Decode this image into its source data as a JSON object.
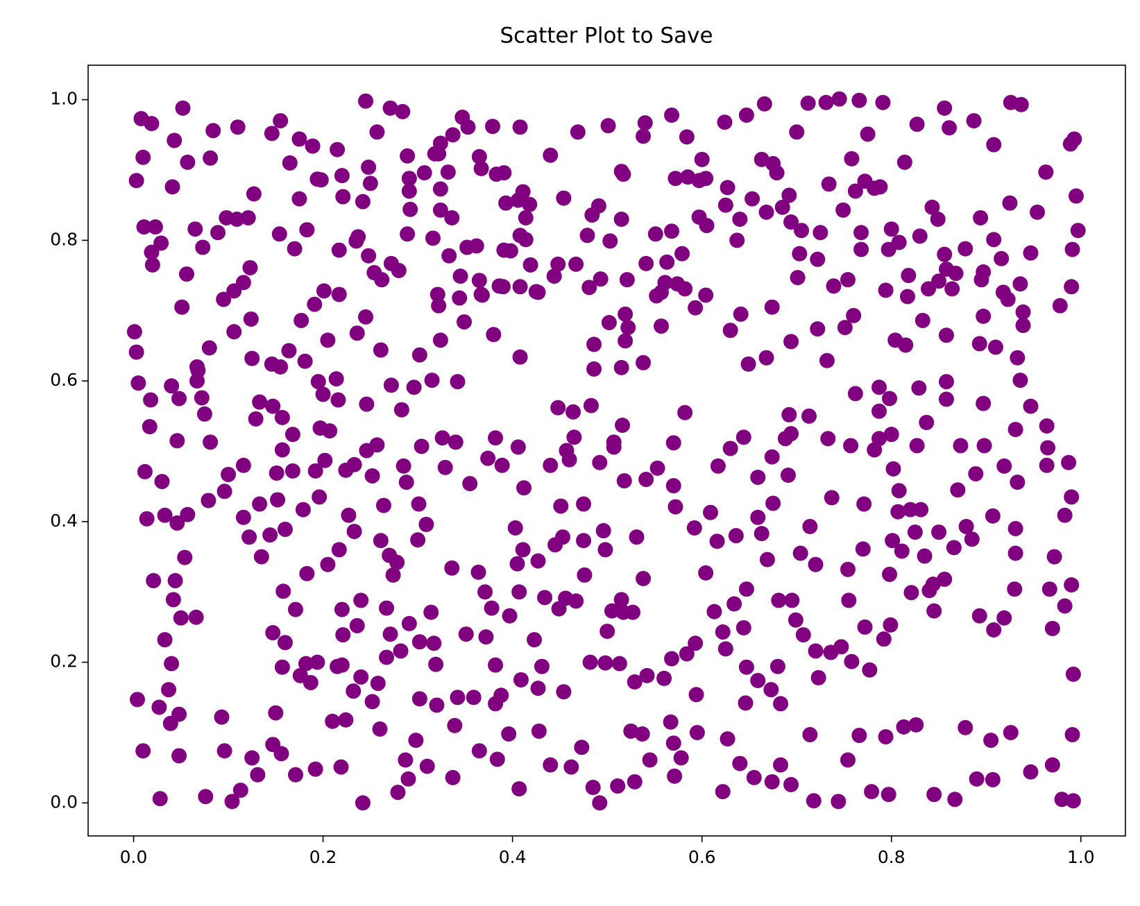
{
  "chart_data": {
    "type": "scatter",
    "title": "Scatter Plot to Save",
    "color": "#800080",
    "xlim": [
      -0.048,
      1.047
    ],
    "ylim": [
      -0.047,
      1.049
    ],
    "xticks": [
      {
        "value": 0,
        "label": "0.0"
      },
      0.2,
      0.4,
      0.6,
      0.8,
      {
        "value": 1,
        "label": "1.0"
      }
    ],
    "yticks": [
      {
        "value": 0,
        "label": "0.0"
      },
      0.2,
      0.4,
      0.6,
      0.8,
      {
        "value": 1,
        "label": "1.0"
      }
    ],
    "x": [
      0.003,
      0.008,
      0.019,
      0.01,
      0.011,
      0.023,
      0.019,
      0.02,
      0.029,
      0.041,
      0.043,
      0.052,
      0.057,
      0.065,
      0.073,
      0.084,
      0.081,
      0.11,
      0.127,
      0.146,
      0.155,
      0.165,
      0.175,
      0.189,
      0.198,
      0.215,
      0.22,
      0.245,
      0.257,
      0.271,
      0.284,
      0.289,
      0.322,
      0.347,
      0.365,
      0.379,
      0.391,
      0.408,
      0.411,
      0.44,
      0.454,
      0.469,
      0.501,
      0.515,
      0.538,
      0.54,
      0.568,
      0.584,
      0.6,
      0.624,
      0.647,
      0.666,
      0.7,
      0.712,
      0.731,
      0.745,
      0.766,
      0.791,
      0.775,
      0.758,
      0.782,
      0.814,
      0.827,
      0.856,
      0.861,
      0.887,
      0.908,
      0.926,
      0.937,
      0.963,
      0.989,
      0.993,
      0.995,
      0.997,
      0.991,
      0.99,
      0.978,
      0.954,
      0.947,
      0.936,
      0.939,
      0.918,
      0.916,
      0.925,
      0.894,
      0.897,
      0.91,
      0.893,
      0.878,
      0.858,
      0.858,
      0.817,
      0.804,
      0.794,
      0.797,
      0.808,
      0.83,
      0.849,
      0.843,
      0.754,
      0.751,
      0.76,
      0.739,
      0.722,
      0.703,
      0.701,
      0.732,
      0.722,
      0.694,
      0.674,
      0.668,
      0.649,
      0.641,
      0.63,
      0.637,
      0.625,
      0.605,
      0.579,
      0.563,
      0.551,
      0.568,
      0.574,
      0.582,
      0.593,
      0.604,
      0.557,
      0.538,
      0.522,
      0.515,
      0.502,
      0.486,
      0.486,
      0.483,
      0.464,
      0.448,
      0.444,
      0.427,
      0.408,
      0.408,
      0.39,
      0.368,
      0.38,
      0.349,
      0.342,
      0.324,
      0.315,
      0.302,
      0.296,
      0.283,
      0.272,
      0.261,
      0.245,
      0.236,
      0.262,
      0.235,
      0.217,
      0.201,
      0.217,
      0.191,
      0.177,
      0.164,
      0.146,
      0.125,
      0.124,
      0.106,
      0.08,
      0.068,
      0.051,
      0.056,
      0.04,
      0.005,
      0.003,
      0.001,
      0.018,
      0.048,
      0.046,
      0.012,
      0.017,
      0.03,
      0.014,
      0.033,
      0.057,
      0.046,
      0.054,
      0.044,
      0.021,
      0.042,
      0.05,
      0.066,
      0.033,
      0.04,
      0.037,
      0.004,
      0.027,
      0.039,
      0.048,
      0.01,
      0.028,
      0.048,
      0.076,
      0.093,
      0.096,
      0.104,
      0.113,
      0.125,
      0.131,
      0.15,
      0.147,
      0.156,
      0.171,
      0.192,
      0.219,
      0.21,
      0.224,
      0.22,
      0.221,
      0.236,
      0.24,
      0.242,
      0.252,
      0.26,
      0.279,
      0.287,
      0.298,
      0.31,
      0.337,
      0.339,
      0.342,
      0.351,
      0.365,
      0.384,
      0.396,
      0.407,
      0.428,
      0.44,
      0.454,
      0.462,
      0.473,
      0.485,
      0.492,
      0.511,
      0.525,
      0.529,
      0.537,
      0.545,
      0.571,
      0.578,
      0.595,
      0.622,
      0.627,
      0.64,
      0.655,
      0.674,
      0.683,
      0.694,
      0.714,
      0.718,
      0.744,
      0.754,
      0.766,
      0.779,
      0.797,
      0.794,
      0.813,
      0.826,
      0.845,
      0.867,
      0.878,
      0.89,
      0.907,
      0.905,
      0.926,
      0.947,
      0.97,
      0.98,
      0.992,
      0.991,
      0.992,
      0.99,
      0.983,
      0.967,
      0.97,
      0.972,
      0.983,
      0.99,
      0.987,
      0.964,
      0.965,
      0.964,
      0.947,
      0.936,
      0.931,
      0.919,
      0.933,
      0.907,
      0.931,
      0.931,
      0.93,
      0.919,
      0.908,
      0.893,
      0.885,
      0.879,
      0.866,
      0.87,
      0.898,
      0.889,
      0.897,
      0.873,
      0.858,
      0.858,
      0.837,
      0.829,
      0.827,
      0.82,
      0.831,
      0.811,
      0.801,
      0.798,
      0.84,
      0.845,
      0.821,
      0.799,
      0.792,
      0.777,
      0.758,
      0.747,
      0.736,
      0.723,
      0.72,
      0.707,
      0.695,
      0.681,
      0.669,
      0.663,
      0.675,
      0.691,
      0.694,
      0.692,
      0.713,
      0.733,
      0.757,
      0.762,
      0.787,
      0.787,
      0.782,
      0.771,
      0.77,
      0.754,
      0.772,
      0.755,
      0.737,
      0.714,
      0.704,
      0.72,
      0.699,
      0.68,
      0.683,
      0.673,
      0.659,
      0.647,
      0.646,
      0.644,
      0.647,
      0.634,
      0.622,
      0.625,
      0.613,
      0.604,
      0.594,
      0.593,
      0.584,
      0.568,
      0.567,
      0.57,
      0.56,
      0.542,
      0.529,
      0.513,
      0.498,
      0.482,
      0.5,
      0.505,
      0.517,
      0.527,
      0.531,
      0.538,
      0.515,
      0.498,
      0.496,
      0.492,
      0.507,
      0.516,
      0.507,
      0.518,
      0.541,
      0.553,
      0.57,
      0.57,
      0.582,
      0.572,
      0.592,
      0.609,
      0.616,
      0.636,
      0.644,
      0.63,
      0.617,
      0.659,
      0.659,
      0.674,
      0.688,
      0.475,
      0.451,
      0.44,
      0.457,
      0.465,
      0.46,
      0.453,
      0.445,
      0.475,
      0.476,
      0.467,
      0.456,
      0.434,
      0.449,
      0.427,
      0.423,
      0.431,
      0.427,
      0.409,
      0.407,
      0.405,
      0.411,
      0.403,
      0.412,
      0.406,
      0.389,
      0.382,
      0.374,
      0.355,
      0.34,
      0.326,
      0.329,
      0.304,
      0.301,
      0.309,
      0.3,
      0.288,
      0.285,
      0.264,
      0.257,
      0.246,
      0.233,
      0.224,
      0.252,
      0.227,
      0.233,
      0.217,
      0.205,
      0.22,
      0.24,
      0.261,
      0.27,
      0.274,
      0.278,
      0.267,
      0.271,
      0.267,
      0.282,
      0.291,
      0.302,
      0.317,
      0.319,
      0.314,
      0.336,
      0.364,
      0.371,
      0.378,
      0.382,
      0.372,
      0.388,
      0.359,
      0.382,
      0.397,
      0.32,
      0.302,
      0.29,
      0.258,
      0.232,
      0.215,
      0.194,
      0.182,
      0.176,
      0.187,
      0.157,
      0.16,
      0.147,
      0.158,
      0.171,
      0.183,
      0.179,
      0.196,
      0.192,
      0.168,
      0.151,
      0.152,
      0.16,
      0.144,
      0.135,
      0.122,
      0.116,
      0.133,
      0.116,
      0.1,
      0.096,
      0.079,
      0.081,
      0.075,
      0.072,
      0.067,
      0.067,
      0.133,
      0.129,
      0.147,
      0.157,
      0.168,
      0.157,
      0.197,
      0.207,
      0.202,
      0.216,
      0.246,
      0.205,
      0.214,
      0.181,
      0.195,
      0.2,
      0.155,
      0.095,
      0.106,
      0.116,
      0.123,
      0.098,
      0.121,
      0.089,
      0.109,
      0.154,
      0.183,
      0.17,
      0.175,
      0.194,
      0.221,
      0.242,
      0.25,
      0.248,
      0.237,
      0.248,
      0.254,
      0.291,
      0.291,
      0.292,
      0.289,
      0.307,
      0.324,
      0.324,
      0.336,
      0.316,
      0.333,
      0.321,
      0.322,
      0.345,
      0.344,
      0.352,
      0.362,
      0.365,
      0.367,
      0.386,
      0.391,
      0.398,
      0.408,
      0.414,
      0.419,
      0.425,
      0.414,
      0.406,
      0.418,
      0.393,
      0.383,
      0.367,
      0.353,
      0.337,
      0.324,
      0.318,
      0.332,
      0.272,
      0.28,
      0.448,
      0.467,
      0.479,
      0.484,
      0.491,
      0.503,
      0.515,
      0.493,
      0.481,
      0.517,
      0.521,
      0.519,
      0.519,
      0.541,
      0.557,
      0.561,
      0.552,
      0.572,
      0.585,
      0.597,
      0.597,
      0.604,
      0.627,
      0.64,
      0.653,
      0.663,
      0.675,
      0.679,
      0.668,
      0.692,
      0.685,
      0.694,
      0.705,
      0.725,
      0.734,
      0.762,
      0.749,
      0.768,
      0.768,
      0.772,
      0.788,
      0.8,
      0.856,
      0.864,
      0.868,
      0.85,
      0.839,
      0.897,
      0.908,
      0.923,
      0.939,
      0.933,
      0.895,
      0.818,
      0.833,
      0.815,
      0.798,
      0.8,
      0.802,
      0.808,
      0.787,
      0.807,
      0.835,
      0.85,
      0.844,
      0.825,
      0.856
    ],
    "values": [
      0.885,
      0.973,
      0.966,
      0.918,
      0.819,
      0.819,
      0.783,
      0.765,
      0.796,
      0.876,
      0.942,
      0.988,
      0.911,
      0.816,
      0.79,
      0.956,
      0.917,
      0.961,
      0.866,
      0.952,
      0.97,
      0.91,
      0.944,
      0.934,
      0.886,
      0.929,
      0.892,
      0.998,
      0.954,
      0.988,
      0.983,
      0.92,
      0.923,
      0.975,
      0.919,
      0.962,
      0.896,
      0.961,
      0.869,
      0.921,
      0.86,
      0.954,
      0.963,
      0.898,
      0.948,
      0.967,
      0.978,
      0.947,
      0.915,
      0.968,
      0.978,
      0.994,
      0.954,
      0.995,
      0.996,
      1.001,
      0.999,
      0.996,
      0.951,
      0.916,
      0.874,
      0.911,
      0.965,
      0.988,
      0.96,
      0.97,
      0.936,
      0.996,
      0.993,
      0.897,
      0.937,
      0.944,
      0.863,
      0.814,
      0.787,
      0.734,
      0.707,
      0.84,
      0.782,
      0.738,
      0.698,
      0.726,
      0.774,
      0.853,
      0.832,
      0.692,
      0.648,
      0.653,
      0.788,
      0.759,
      0.665,
      0.72,
      0.658,
      0.729,
      0.787,
      0.797,
      0.806,
      0.83,
      0.847,
      0.744,
      0.676,
      0.693,
      0.735,
      0.773,
      0.781,
      0.747,
      0.629,
      0.674,
      0.656,
      0.705,
      0.633,
      0.624,
      0.695,
      0.672,
      0.8,
      0.85,
      0.821,
      0.781,
      0.769,
      0.809,
      0.813,
      0.738,
      0.731,
      0.704,
      0.722,
      0.678,
      0.626,
      0.676,
      0.619,
      0.683,
      0.652,
      0.617,
      0.565,
      0.556,
      0.562,
      0.749,
      0.726,
      0.734,
      0.634,
      0.734,
      0.722,
      0.666,
      0.684,
      0.599,
      0.658,
      0.601,
      0.637,
      0.591,
      0.559,
      0.594,
      0.644,
      0.691,
      0.668,
      0.744,
      0.799,
      0.786,
      0.728,
      0.723,
      0.709,
      0.686,
      0.643,
      0.624,
      0.632,
      0.688,
      0.67,
      0.647,
      0.615,
      0.705,
      0.752,
      0.593,
      0.597,
      0.641,
      0.67,
      0.573,
      0.575,
      0.515,
      0.471,
      0.535,
      0.457,
      0.404,
      0.409,
      0.41,
      0.398,
      0.349,
      0.316,
      0.316,
      0.289,
      0.263,
      0.264,
      0.232,
      0.198,
      0.161,
      0.147,
      0.136,
      0.113,
      0.126,
      0.074,
      0.006,
      0.067,
      0.009,
      0.122,
      0.074,
      0.002,
      0.018,
      0.064,
      0.04,
      0.128,
      0.083,
      0.07,
      0.04,
      0.048,
      0.051,
      0.116,
      0.118,
      0.196,
      0.239,
      0.252,
      0.179,
      0.0,
      0.144,
      0.105,
      0.015,
      0.061,
      0.089,
      0.052,
      0.036,
      0.11,
      0.15,
      0.24,
      0.074,
      0.062,
      0.098,
      0.02,
      0.102,
      0.054,
      0.158,
      0.051,
      0.079,
      0.022,
      0.0,
      0.024,
      0.102,
      0.03,
      0.098,
      0.061,
      0.038,
      0.064,
      0.1,
      0.016,
      0.091,
      0.056,
      0.036,
      0.03,
      0.054,
      0.026,
      0.097,
      0.003,
      0.002,
      0.061,
      0.096,
      0.016,
      0.012,
      0.094,
      0.108,
      0.111,
      0.012,
      0.005,
      0.107,
      0.034,
      0.033,
      0.089,
      0.1,
      0.044,
      0.054,
      0.005,
      0.003,
      0.097,
      0.183,
      0.31,
      0.28,
      0.304,
      0.248,
      0.35,
      0.409,
      0.435,
      0.484,
      0.48,
      0.505,
      0.536,
      0.564,
      0.601,
      0.531,
      0.479,
      0.456,
      0.408,
      0.39,
      0.355,
      0.304,
      0.263,
      0.246,
      0.266,
      0.375,
      0.393,
      0.363,
      0.445,
      0.508,
      0.468,
      0.568,
      0.508,
      0.574,
      0.599,
      0.541,
      0.59,
      0.508,
      0.417,
      0.417,
      0.358,
      0.373,
      0.325,
      0.302,
      0.273,
      0.299,
      0.253,
      0.233,
      0.189,
      0.201,
      0.222,
      0.214,
      0.178,
      0.216,
      0.239,
      0.288,
      0.288,
      0.346,
      0.383,
      0.426,
      0.466,
      0.525,
      0.552,
      0.55,
      0.518,
      0.508,
      0.582,
      0.557,
      0.591,
      0.502,
      0.425,
      0.361,
      0.332,
      0.25,
      0.288,
      0.434,
      0.393,
      0.355,
      0.339,
      0.26,
      0.194,
      0.141,
      0.161,
      0.174,
      0.193,
      0.142,
      0.249,
      0.304,
      0.283,
      0.243,
      0.219,
      0.272,
      0.327,
      0.154,
      0.227,
      0.212,
      0.205,
      0.115,
      0.085,
      0.177,
      0.181,
      0.172,
      0.198,
      0.199,
      0.2,
      0.244,
      0.273,
      0.271,
      0.271,
      0.378,
      0.319,
      0.289,
      0.36,
      0.387,
      0.484,
      0.506,
      0.537,
      0.513,
      0.458,
      0.46,
      0.476,
      0.451,
      0.512,
      0.555,
      0.421,
      0.391,
      0.413,
      0.372,
      0.38,
      0.52,
      0.504,
      0.479,
      0.463,
      0.406,
      0.492,
      0.518,
      0.425,
      0.422,
      0.48,
      0.501,
      0.52,
      0.488,
      0.378,
      0.367,
      0.373,
      0.324,
      0.287,
      0.291,
      0.292,
      0.276,
      0.344,
      0.232,
      0.194,
      0.163,
      0.175,
      0.3,
      0.34,
      0.36,
      0.391,
      0.448,
      0.506,
      0.48,
      0.519,
      0.49,
      0.454,
      0.513,
      0.519,
      0.477,
      0.507,
      0.425,
      0.396,
      0.374,
      0.456,
      0.479,
      0.423,
      0.509,
      0.501,
      0.481,
      0.473,
      0.465,
      0.409,
      0.386,
      0.36,
      0.339,
      0.275,
      0.288,
      0.373,
      0.352,
      0.324,
      0.342,
      0.277,
      0.24,
      0.207,
      0.216,
      0.255,
      0.229,
      0.227,
      0.197,
      0.271,
      0.334,
      0.328,
      0.3,
      0.277,
      0.196,
      0.236,
      0.153,
      0.15,
      0.141,
      0.266,
      0.139,
      0.148,
      0.034,
      0.17,
      0.159,
      0.194,
      0.2,
      0.198,
      0.181,
      0.171,
      0.193,
      0.228,
      0.242,
      0.301,
      0.275,
      0.326,
      0.417,
      0.435,
      0.472,
      0.472,
      0.469,
      0.431,
      0.389,
      0.381,
      0.35,
      0.378,
      0.406,
      0.425,
      0.48,
      0.467,
      0.443,
      0.43,
      0.513,
      0.553,
      0.576,
      0.6,
      0.62,
      0.57,
      0.546,
      0.564,
      0.548,
      0.524,
      0.502,
      0.533,
      0.529,
      0.487,
      0.573,
      0.567,
      0.658,
      0.603,
      0.628,
      0.599,
      0.581,
      0.62,
      0.716,
      0.728,
      0.74,
      0.761,
      0.832,
      0.832,
      0.811,
      0.83,
      0.809,
      0.815,
      0.788,
      0.859,
      0.887,
      0.862,
      0.855,
      0.881,
      0.904,
      0.805,
      0.778,
      0.754,
      0.888,
      0.87,
      0.844,
      0.809,
      0.896,
      0.873,
      0.843,
      0.832,
      0.803,
      0.778,
      0.723,
      0.707,
      0.749,
      0.718,
      0.79,
      0.792,
      0.743,
      0.723,
      0.735,
      0.786,
      0.785,
      0.807,
      0.801,
      0.765,
      0.727,
      0.832,
      0.857,
      0.851,
      0.853,
      0.894,
      0.902,
      0.961,
      0.95,
      0.938,
      0.923,
      0.897,
      0.767,
      0.757,
      0.766,
      0.766,
      0.807,
      0.836,
      0.849,
      0.799,
      0.83,
      0.745,
      0.733,
      0.894,
      0.744,
      0.695,
      0.657,
      0.767,
      0.726,
      0.74,
      0.721,
      0.888,
      0.89,
      0.885,
      0.833,
      0.888,
      0.875,
      0.83,
      0.859,
      0.915,
      0.909,
      0.896,
      0.84,
      0.864,
      0.847,
      0.826,
      0.814,
      0.811,
      0.88,
      0.87,
      0.843,
      0.811,
      0.787,
      0.884,
      0.876,
      0.816,
      0.78,
      0.731,
      0.753,
      0.742,
      0.731,
      0.755,
      0.801,
      0.716,
      0.679,
      0.633,
      0.744,
      0.75,
      0.686,
      0.651,
      0.575,
      0.524,
      0.475,
      0.444,
      0.518,
      0.414,
      0.351,
      0.385,
      0.311,
      0.385,
      0.318
    ]
  }
}
